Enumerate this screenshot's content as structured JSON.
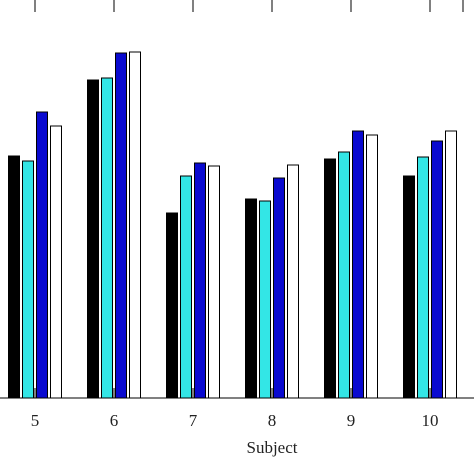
{
  "chart_data": {
    "type": "bar",
    "x_label": "Subject",
    "categories": [
      "5",
      "6",
      "7",
      "8",
      "9",
      "10"
    ],
    "series": [
      {
        "color": "#000000",
        "values": [
          242,
          318,
          185,
          199,
          239,
          222
        ]
      },
      {
        "color": "#33e6e6",
        "values": [
          237,
          320,
          222,
          197,
          246,
          241
        ]
      },
      {
        "color": "#0a0ad0",
        "values": [
          286,
          345,
          235,
          220,
          267,
          257
        ]
      },
      {
        "color": "#ffffff",
        "values": [
          272,
          346,
          232,
          233,
          263,
          267
        ]
      }
    ],
    "ylim": [
      0,
      398
    ]
  }
}
